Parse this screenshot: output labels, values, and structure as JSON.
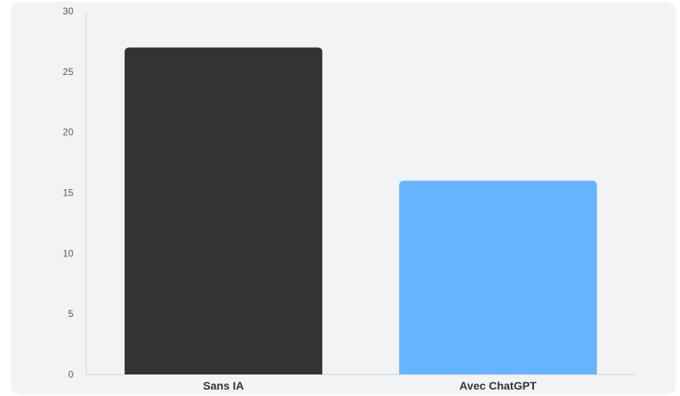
{
  "chart_data": {
    "type": "bar",
    "title": "",
    "xlabel": "",
    "ylabel": "",
    "categories": [
      "Sans IA",
      "Avec ChatGPT"
    ],
    "values": [
      27,
      16
    ],
    "colors": [
      "#333333",
      "#66b3ff"
    ],
    "ylim": [
      0,
      30
    ],
    "yticks": [
      0,
      5,
      10,
      15,
      20,
      25,
      30
    ],
    "grid": false,
    "legend": "none"
  },
  "colors": {
    "background": "#f2f3f5",
    "axis": "#d0d3d8"
  }
}
